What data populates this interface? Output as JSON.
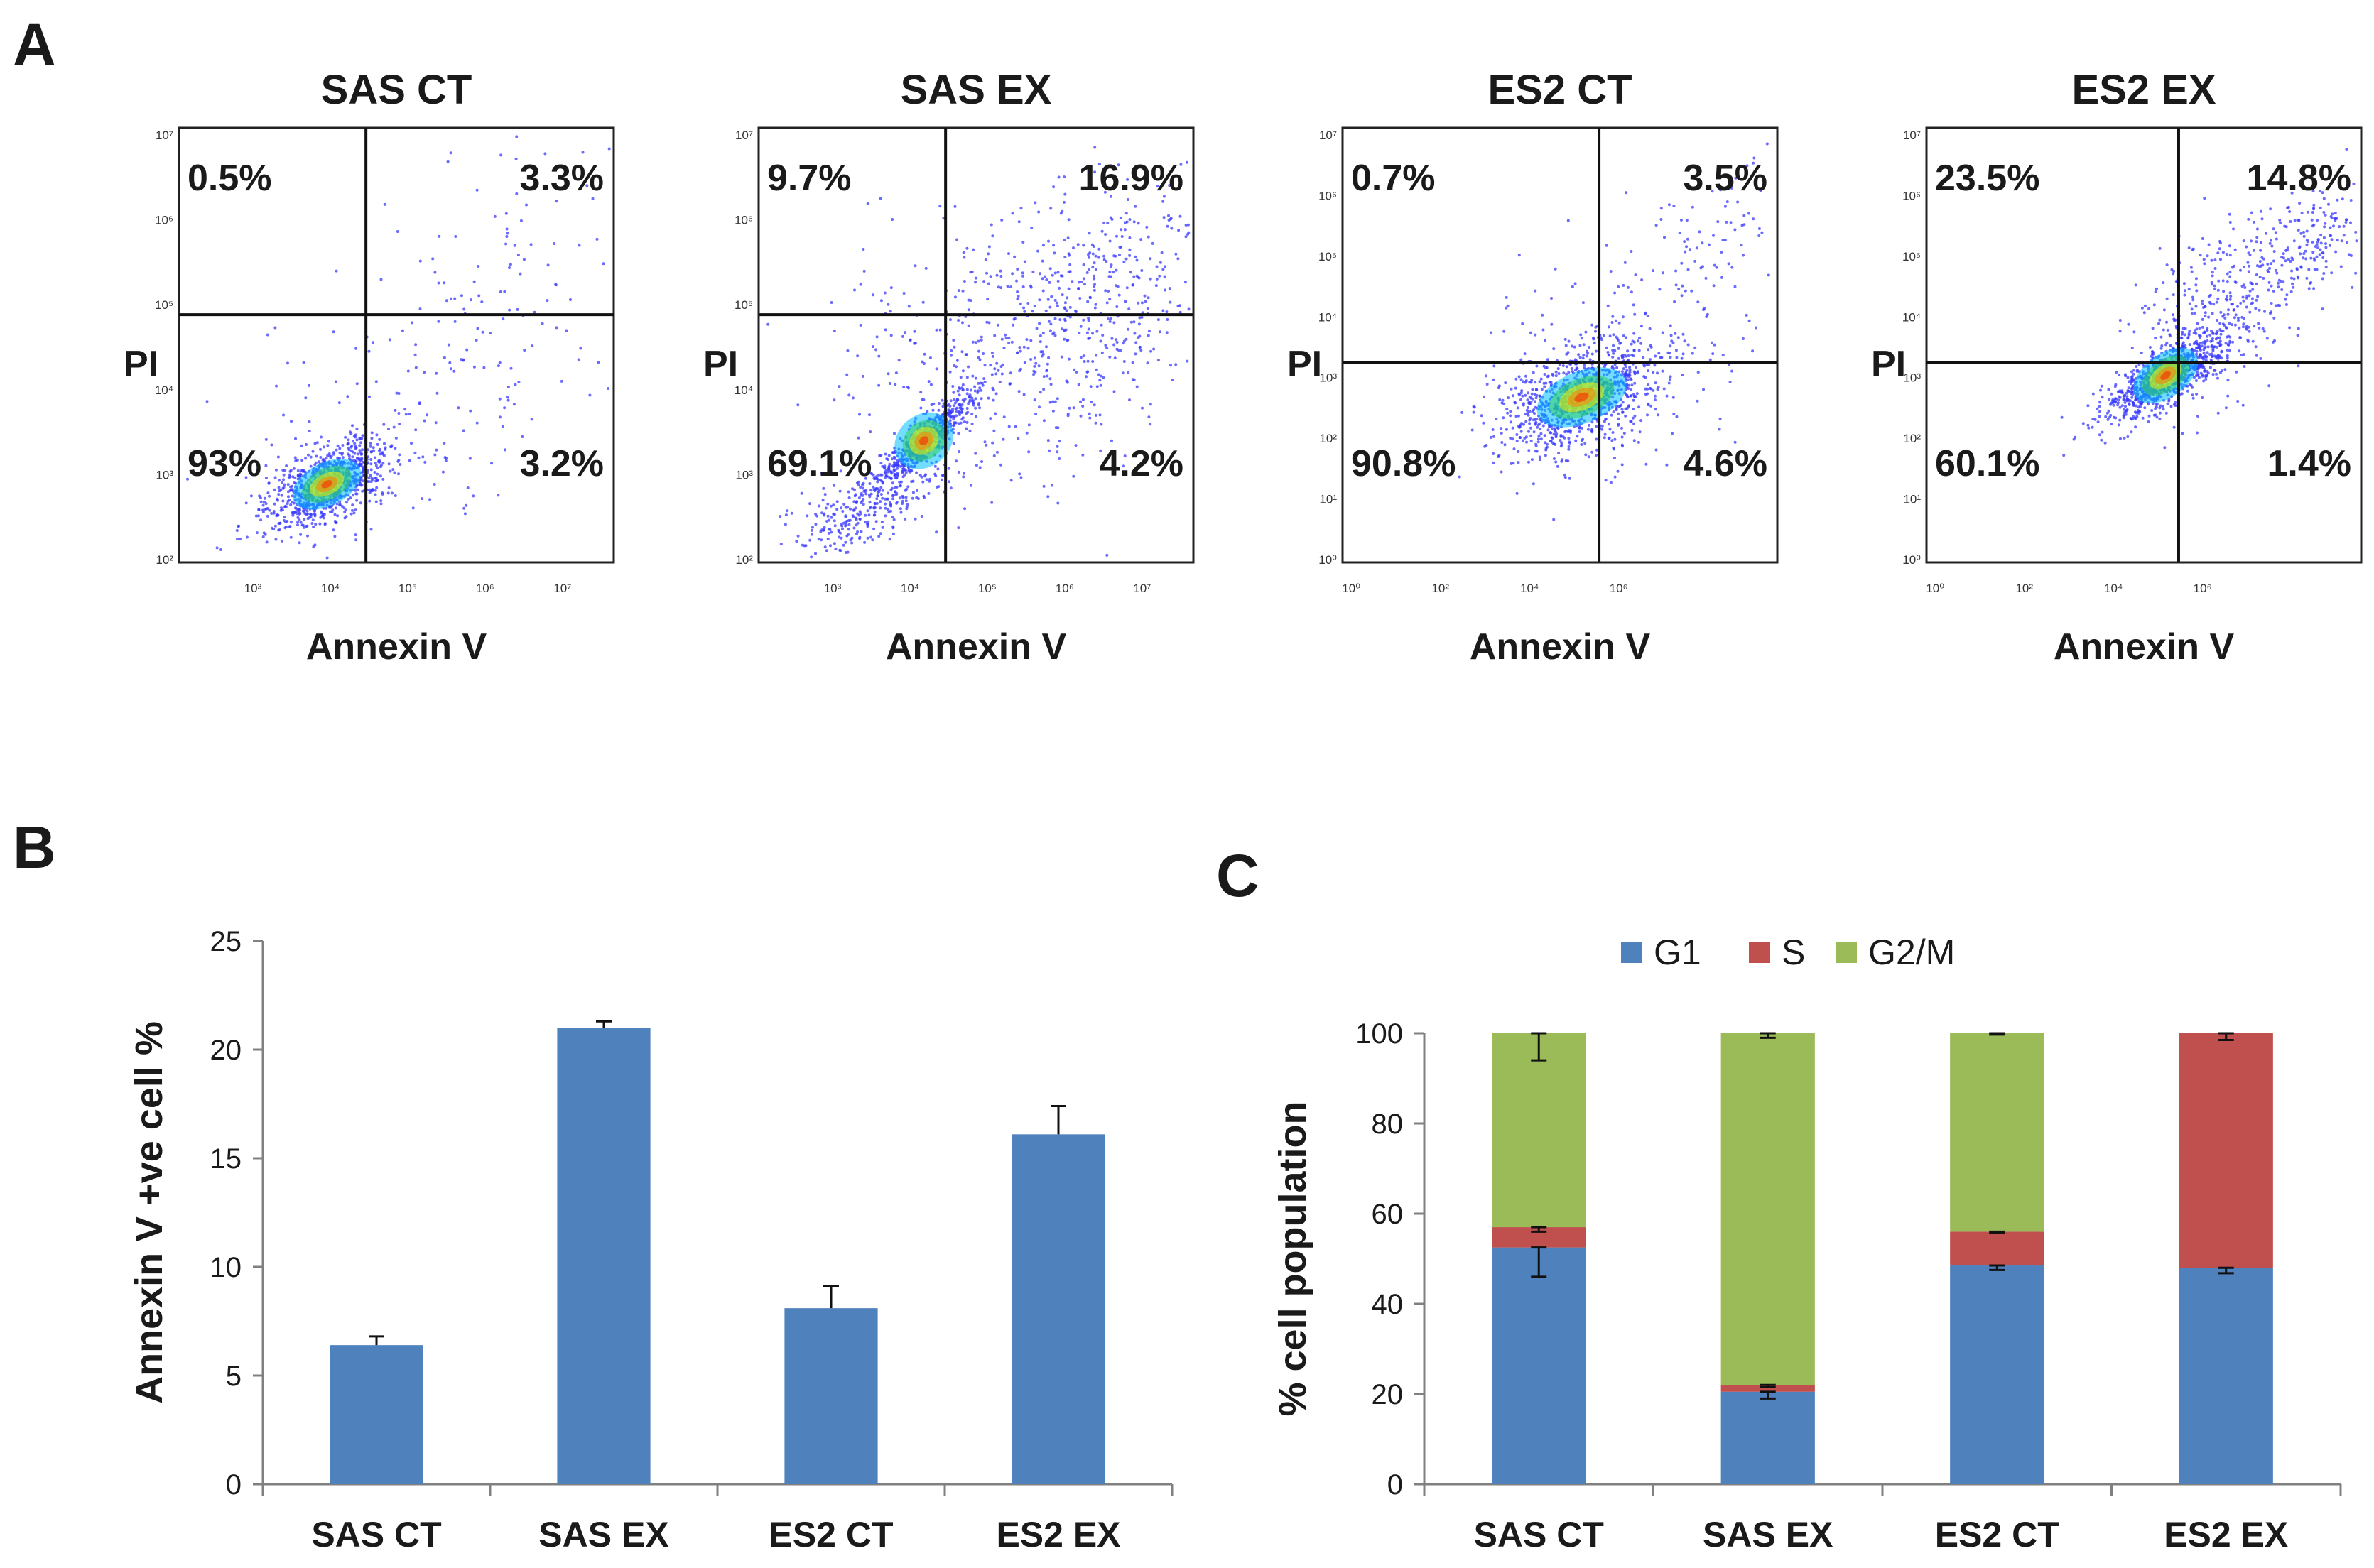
{
  "panel_labels": {
    "a": "A",
    "b": "B",
    "c": "C"
  },
  "colors": {
    "bar_blue": "#4f81bd",
    "s_red": "#c0504d",
    "g2m_green": "#9bbb59",
    "axis": "#808080",
    "dot": "#3a3aff"
  },
  "chart_data": [
    {
      "type": "scatter",
      "title": "SAS CT",
      "xlabel": "Annexin V",
      "ylabel": "PI",
      "x_ticks": [
        "10³",
        "10⁴",
        "10⁵",
        "10⁶",
        "10⁷"
      ],
      "y_ticks": [
        "10⁷",
        "10⁶",
        "10⁵",
        "10⁴",
        "10³",
        "10²"
      ],
      "quadrants": {
        "upper_left": "0.5%",
        "upper_right": "3.3%",
        "lower_left": "93%",
        "lower_right": "3.2%"
      }
    },
    {
      "type": "scatter",
      "title": "SAS EX",
      "xlabel": "Annexin V",
      "ylabel": "PI",
      "x_ticks": [
        "10³",
        "10⁴",
        "10⁵",
        "10⁶",
        "10⁷"
      ],
      "y_ticks": [
        "10⁷",
        "10⁶",
        "10⁵",
        "10⁴",
        "10³",
        "10²"
      ],
      "quadrants": {
        "upper_left": "9.7%",
        "upper_right": "16.9%",
        "lower_left": "69.1%",
        "lower_right": "4.2%"
      }
    },
    {
      "type": "scatter",
      "title": "ES2 CT",
      "xlabel": "Annexin V",
      "ylabel": "PI",
      "x_ticks": [
        "10⁰",
        "10²",
        "10⁴",
        "10⁶"
      ],
      "y_ticks": [
        "10⁷",
        "10⁶",
        "10⁵",
        "10⁴",
        "10³",
        "10²",
        "10¹",
        "10⁰"
      ],
      "quadrants": {
        "upper_left": "0.7%",
        "upper_right": "3.5%",
        "lower_left": "90.8%",
        "lower_right": "4.6%"
      }
    },
    {
      "type": "scatter",
      "title": "ES2 EX",
      "xlabel": "Annexin V",
      "ylabel": "PI",
      "x_ticks": [
        "10⁰",
        "10²",
        "10⁴",
        "10⁶"
      ],
      "y_ticks": [
        "10⁷",
        "10⁶",
        "10⁵",
        "10⁴",
        "10³",
        "10²",
        "10¹",
        "10⁰"
      ],
      "quadrants": {
        "upper_left": "23.5%",
        "upper_right": "14.8%",
        "lower_left": "60.1%",
        "lower_right": "1.4%"
      }
    },
    {
      "type": "bar",
      "categories": [
        "SAS CT",
        "SAS EX",
        "ES2 CT",
        "ES2 EX"
      ],
      "values": [
        6.4,
        21.0,
        8.1,
        16.1
      ],
      "errors": [
        0.4,
        0.3,
        1.0,
        1.3
      ],
      "ylabel": "Annexin V +ve cell %",
      "ylim": [
        0,
        25
      ],
      "yticks": [
        0,
        5,
        10,
        15,
        20,
        25
      ]
    },
    {
      "type": "bar",
      "stacked": true,
      "categories": [
        "SAS CT",
        "SAS EX",
        "ES2 CT",
        "ES2 EX"
      ],
      "series": [
        {
          "name": "G1",
          "values": [
            52.5,
            20.5,
            48.5,
            48.0
          ],
          "errors": [
            6.5,
            1.5,
            1.0,
            1.2
          ]
        },
        {
          "name": "S",
          "values": [
            4.5,
            1.5,
            7.5,
            52.0
          ],
          "errors": [
            1.0,
            0.5,
            0.2,
            1.5
          ]
        },
        {
          "name": "G2/M",
          "values": [
            43.0,
            78.0,
            44.0,
            0.0
          ],
          "errors": [
            6.0,
            1.0,
            0.3,
            0.0
          ]
        }
      ],
      "ylabel": "% cell population",
      "ylim": [
        0,
        100
      ],
      "yticks": [
        0,
        20,
        40,
        60,
        80,
        100
      ]
    }
  ]
}
